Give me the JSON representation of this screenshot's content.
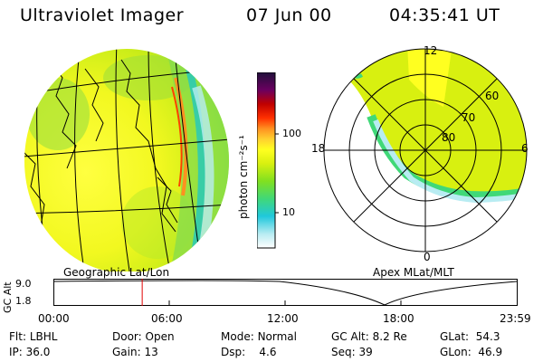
{
  "header": {
    "instrument": "Ultraviolet Imager",
    "date": "07 Jun 00",
    "time": "04:35:41 UT"
  },
  "colorbar": {
    "unit_label": "photon cm⁻²s⁻¹",
    "ticks": [
      "100",
      "10"
    ],
    "colors": [
      "#ffffff",
      "#b8ecf2",
      "#20c8dc",
      "#40d878",
      "#80e020",
      "#d8f010",
      "#ffff20",
      "#ffd030",
      "#ff9020",
      "#ff3000",
      "#c00000",
      "#6a0060",
      "#20103a"
    ]
  },
  "geo_map": {
    "label": "Geographic Lat/Lon"
  },
  "polar_map": {
    "label": "Apex MLat/MLT",
    "lat_labels": [
      "80",
      "70",
      "60"
    ],
    "mlt_labels": {
      "top": "12",
      "left": "18",
      "right": "6",
      "bottom": "0"
    }
  },
  "altitude_plot": {
    "ylabel": "GC Alt",
    "y_ticks": [
      "9.0",
      "1.8"
    ],
    "x_ticks": [
      "00:00",
      "06:00",
      "12:00",
      "18:00",
      "23:59"
    ],
    "current_time_hours": 4.6
  },
  "status": {
    "row1": [
      {
        "key": "Flt:",
        "value": "LBHL"
      },
      {
        "key": "Door:",
        "value": "Open"
      },
      {
        "key": "Mode:",
        "value": "Normal"
      },
      {
        "key": "GC Alt:",
        "value": "8.2 Re"
      },
      {
        "key": "GLat:",
        "value": "54.3"
      }
    ],
    "row2": [
      {
        "key": "IP:",
        "value": "36.0"
      },
      {
        "key": "Gain:",
        "value": "13"
      },
      {
        "key": "Dsp:",
        "value": "4.6"
      },
      {
        "key": "Seq:",
        "value": "39"
      },
      {
        "key": "GLon:",
        "value": "46.9"
      }
    ]
  }
}
